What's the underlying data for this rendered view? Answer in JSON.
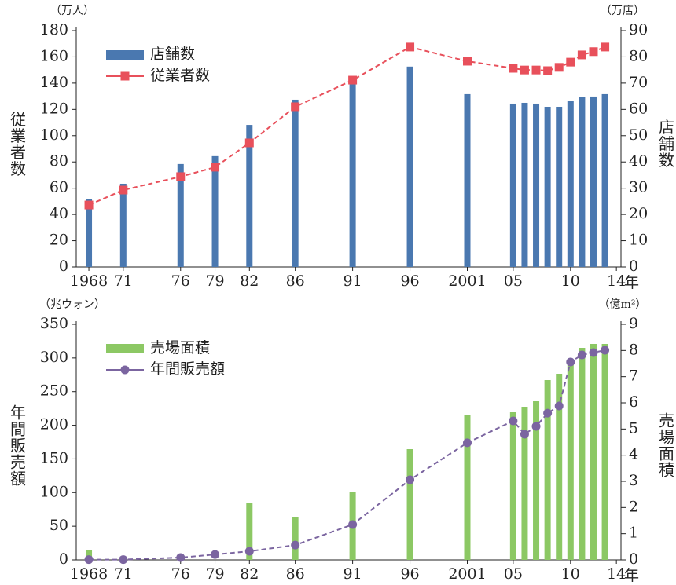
{
  "chart_data": [
    {
      "type": "bar-line",
      "y_unit": "（万人）",
      "y2_unit": "（万店）",
      "ylabel": "従業者数",
      "y2label": "店舗数",
      "x_unit": "年",
      "x": [
        1968,
        1971,
        1976,
        1979,
        1982,
        1986,
        1991,
        1996,
        2001,
        2005,
        2006,
        2007,
        2008,
        2009,
        2010,
        2011,
        2012,
        2013
      ],
      "xlim": [
        1966.9,
        2014.4
      ],
      "xticks": [
        1968,
        {
          "value": 1971,
          "label": "71"
        },
        {
          "value": 1976,
          "label": "76"
        },
        {
          "value": 1979,
          "label": "79"
        },
        {
          "value": 1982,
          "label": "82"
        },
        {
          "value": 1986,
          "label": "86"
        },
        {
          "value": 1991,
          "label": "91"
        },
        {
          "value": 1996,
          "label": "96"
        },
        2001,
        {
          "value": 2005,
          "label": "05"
        },
        {
          "value": 2010,
          "label": "10"
        },
        {
          "value": 2014,
          "label": "14"
        }
      ],
      "ylim": [
        0,
        180
      ],
      "yticks": [
        0,
        20,
        40,
        60,
        80,
        100,
        120,
        140,
        160,
        180
      ],
      "y2lim": [
        0,
        90
      ],
      "y2ticks": [
        0,
        10,
        20,
        30,
        40,
        50,
        60,
        70,
        80,
        90
      ],
      "legend": "top-left",
      "series": [
        {
          "name": "店舗数",
          "kind": "bar",
          "axis": "y2",
          "color": "#4a78b0",
          "values": [
            26,
            31.7,
            39.2,
            42.2,
            54.1,
            63.7,
            70.6,
            76.3,
            65.8,
            62.2,
            62.5,
            62.2,
            61,
            61,
            63.1,
            64.6,
            64.9,
            65.8
          ]
        },
        {
          "name": "従業者数",
          "kind": "line",
          "marker": "square",
          "axis": "y",
          "color": "#e8505b",
          "values": [
            47.2,
            58.6,
            68.8,
            76,
            94.5,
            122,
            142.3,
            167.5,
            156.7,
            151.3,
            150,
            150,
            149.5,
            152,
            156,
            161.5,
            164,
            167.5
          ]
        }
      ]
    },
    {
      "type": "bar-line",
      "y_unit": "（兆ウォン）",
      "y2_unit": "（億m²）",
      "ylabel": "年間販売額",
      "y2label": "売場面積",
      "x_unit": "年",
      "x": [
        1968,
        1971,
        1976,
        1979,
        1982,
        1986,
        1991,
        1996,
        2001,
        2005,
        2006,
        2007,
        2008,
        2009,
        2010,
        2011,
        2012,
        2013
      ],
      "xlim": [
        1966.9,
        2014.4
      ],
      "xticks": [
        1968,
        {
          "value": 1971,
          "label": "71"
        },
        {
          "value": 1976,
          "label": "76"
        },
        {
          "value": 1979,
          "label": "79"
        },
        {
          "value": 1982,
          "label": "82"
        },
        {
          "value": 1986,
          "label": "86"
        },
        {
          "value": 1991,
          "label": "91"
        },
        {
          "value": 1996,
          "label": "96"
        },
        2001,
        {
          "value": 2005,
          "label": "05"
        },
        {
          "value": 2010,
          "label": "10"
        },
        {
          "value": 2014,
          "label": "14"
        }
      ],
      "ylim": [
        0,
        350
      ],
      "yticks": [
        0,
        50,
        100,
        150,
        200,
        250,
        300,
        350
      ],
      "y2lim": [
        0,
        9
      ],
      "y2ticks": [
        0,
        1,
        2,
        3,
        4,
        5,
        6,
        7,
        8,
        9
      ],
      "legend": "top-left",
      "series": [
        {
          "name": "売場面積",
          "kind": "bar",
          "axis": "y2",
          "color": "#8cc864",
          "values": [
            0.39,
            null,
            null,
            null,
            2.16,
            1.62,
            2.61,
            4.23,
            5.55,
            5.64,
            5.85,
            6.06,
            6.87,
            7.11,
            7.53,
            8.1,
            8.25,
            8.25
          ]
        },
        {
          "name": "年間販売額",
          "kind": "line",
          "marker": "circle",
          "axis": "y",
          "color": "#7b65a0",
          "values": [
            0.5,
            0.5,
            3.5,
            8,
            12.8,
            22,
            52.5,
            119,
            174,
            206.5,
            186.7,
            198.4,
            218,
            228.7,
            294,
            304.5,
            308,
            311.5
          ]
        }
      ]
    }
  ]
}
